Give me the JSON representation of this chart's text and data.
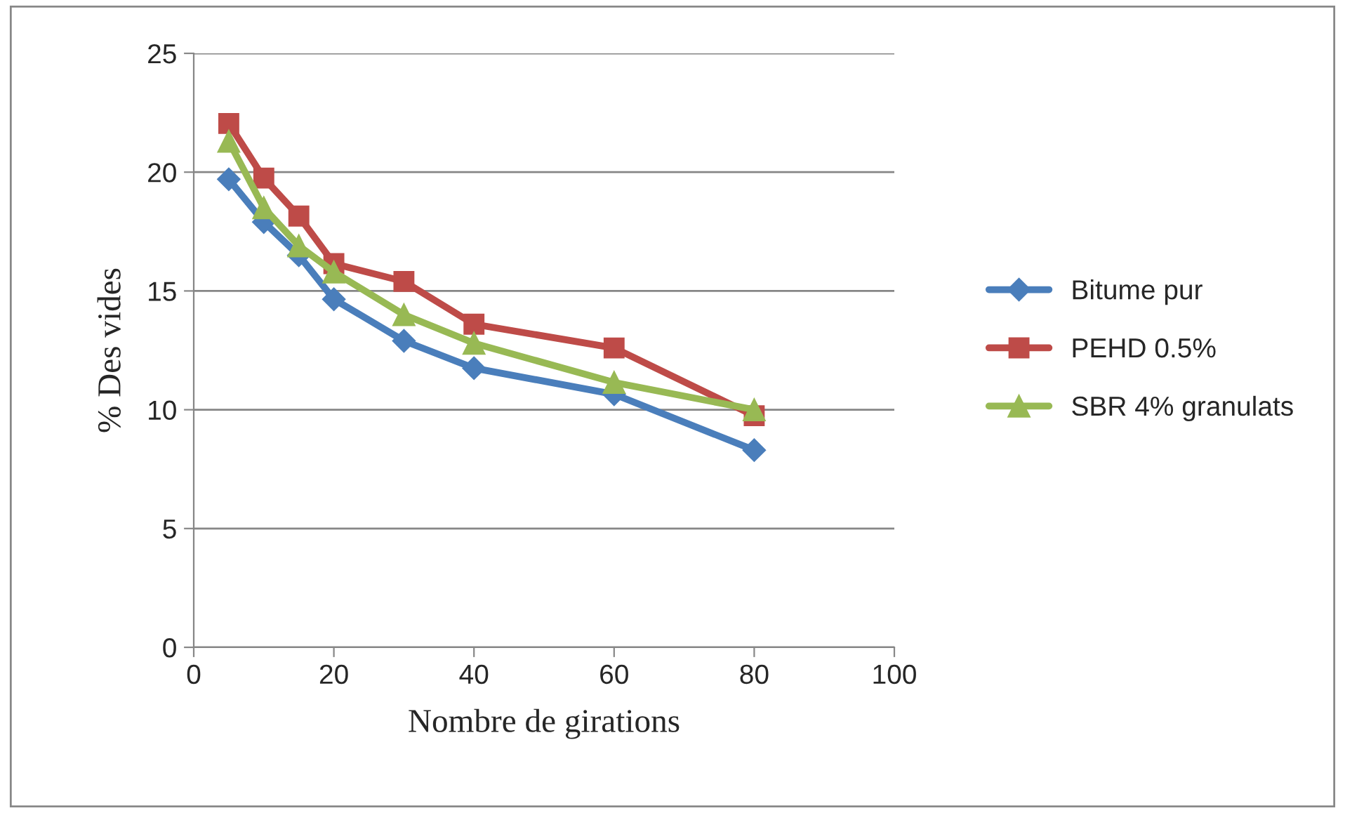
{
  "chart_data": {
    "type": "line",
    "xlabel": "Nombre de girations",
    "ylabel": "% Des vides",
    "x": [
      5,
      10,
      15,
      20,
      30,
      40,
      60,
      80
    ],
    "series": [
      {
        "name": "Bitume pur",
        "color": "#4a7ebb",
        "marker": "diamond",
        "values": [
          19.7,
          17.9,
          16.5,
          14.65,
          12.9,
          11.75,
          10.65,
          8.3
        ]
      },
      {
        "name": "PEHD 0.5%",
        "color": "#be4b48",
        "marker": "square",
        "values": [
          22.05,
          19.75,
          18.15,
          16.15,
          15.4,
          13.6,
          12.6,
          9.75
        ]
      },
      {
        "name": "SBR 4% granulats",
        "color": "#98b954",
        "marker": "triangle",
        "values": [
          21.3,
          18.5,
          16.9,
          15.8,
          14.0,
          12.8,
          11.15,
          10.0
        ]
      }
    ],
    "xlim": [
      0,
      100
    ],
    "xticks": [
      0,
      20,
      40,
      60,
      80,
      100
    ],
    "ylim": [
      0,
      25
    ],
    "yticks": [
      0,
      5,
      10,
      15,
      20,
      25
    ],
    "grid": "y",
    "legend": "right",
    "line_style": "solid"
  }
}
